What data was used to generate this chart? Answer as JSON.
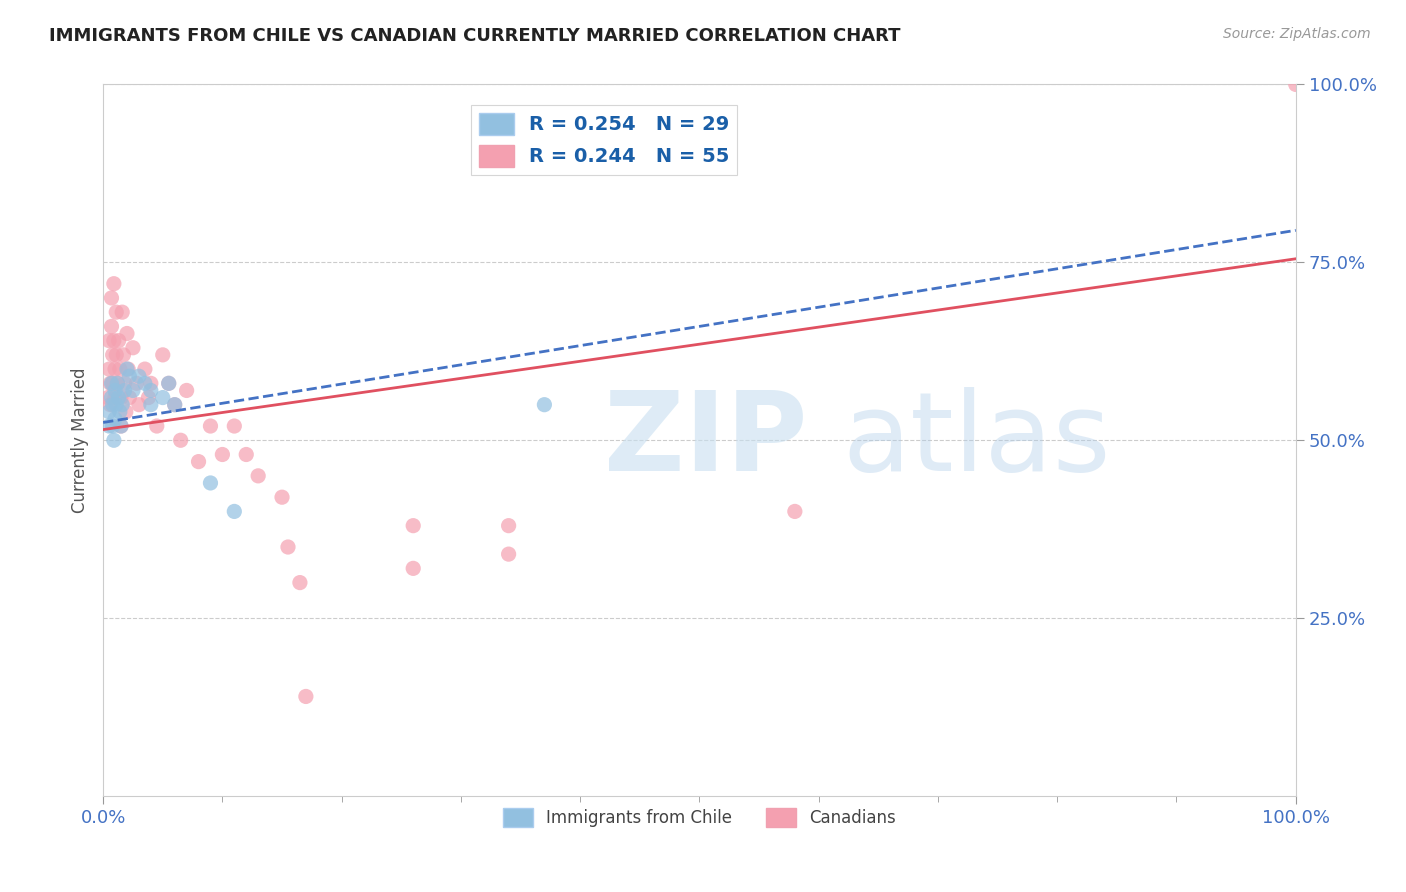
{
  "title": "IMMIGRANTS FROM CHILE VS CANADIAN CURRENTLY MARRIED CORRELATION CHART",
  "source_text": "Source: ZipAtlas.com",
  "ylabel": "Currently Married",
  "xmin": 0.0,
  "xmax": 1.0,
  "ymin": 0.0,
  "ymax": 1.0,
  "color_blue": "#92c0e0",
  "color_pink": "#f4a0b0",
  "trendline_blue_color": "#4472c4",
  "trendline_pink_color": "#e05060",
  "legend_label1": "Immigrants from Chile",
  "legend_label2": "Canadians",
  "legend_r1": "R = 0.254",
  "legend_n1": "N = 29",
  "legend_r2": "R = 0.244",
  "legend_n2": "N = 55",
  "blue_scatter": [
    [
      0.005,
      0.52
    ],
    [
      0.005,
      0.54
    ],
    [
      0.007,
      0.56
    ],
    [
      0.007,
      0.58
    ],
    [
      0.008,
      0.55
    ],
    [
      0.008,
      0.52
    ],
    [
      0.009,
      0.5
    ],
    [
      0.01,
      0.57
    ],
    [
      0.01,
      0.53
    ],
    [
      0.011,
      0.55
    ],
    [
      0.012,
      0.58
    ],
    [
      0.013,
      0.56
    ],
    [
      0.014,
      0.54
    ],
    [
      0.015,
      0.52
    ],
    [
      0.016,
      0.55
    ],
    [
      0.018,
      0.57
    ],
    [
      0.02,
      0.6
    ],
    [
      0.022,
      0.59
    ],
    [
      0.025,
      0.57
    ],
    [
      0.03,
      0.59
    ],
    [
      0.035,
      0.58
    ],
    [
      0.04,
      0.57
    ],
    [
      0.04,
      0.55
    ],
    [
      0.05,
      0.56
    ],
    [
      0.055,
      0.58
    ],
    [
      0.06,
      0.55
    ],
    [
      0.09,
      0.44
    ],
    [
      0.11,
      0.4
    ],
    [
      0.37,
      0.55
    ]
  ],
  "pink_scatter": [
    [
      0.004,
      0.56
    ],
    [
      0.005,
      0.6
    ],
    [
      0.005,
      0.64
    ],
    [
      0.006,
      0.58
    ],
    [
      0.006,
      0.55
    ],
    [
      0.007,
      0.7
    ],
    [
      0.007,
      0.66
    ],
    [
      0.008,
      0.62
    ],
    [
      0.008,
      0.58
    ],
    [
      0.009,
      0.72
    ],
    [
      0.009,
      0.64
    ],
    [
      0.01,
      0.6
    ],
    [
      0.01,
      0.56
    ],
    [
      0.011,
      0.68
    ],
    [
      0.011,
      0.62
    ],
    [
      0.012,
      0.58
    ],
    [
      0.013,
      0.64
    ],
    [
      0.014,
      0.6
    ],
    [
      0.015,
      0.56
    ],
    [
      0.015,
      0.52
    ],
    [
      0.016,
      0.68
    ],
    [
      0.017,
      0.62
    ],
    [
      0.018,
      0.58
    ],
    [
      0.019,
      0.54
    ],
    [
      0.02,
      0.65
    ],
    [
      0.021,
      0.6
    ],
    [
      0.022,
      0.56
    ],
    [
      0.025,
      0.63
    ],
    [
      0.028,
      0.58
    ],
    [
      0.03,
      0.55
    ],
    [
      0.035,
      0.6
    ],
    [
      0.038,
      0.56
    ],
    [
      0.04,
      0.58
    ],
    [
      0.045,
      0.52
    ],
    [
      0.05,
      0.62
    ],
    [
      0.055,
      0.58
    ],
    [
      0.06,
      0.55
    ],
    [
      0.065,
      0.5
    ],
    [
      0.07,
      0.57
    ],
    [
      0.08,
      0.47
    ],
    [
      0.09,
      0.52
    ],
    [
      0.1,
      0.48
    ],
    [
      0.11,
      0.52
    ],
    [
      0.12,
      0.48
    ],
    [
      0.13,
      0.45
    ],
    [
      0.15,
      0.42
    ],
    [
      0.155,
      0.35
    ],
    [
      0.165,
      0.3
    ],
    [
      0.17,
      0.14
    ],
    [
      0.26,
      0.38
    ],
    [
      0.26,
      0.32
    ],
    [
      0.34,
      0.38
    ],
    [
      0.34,
      0.34
    ],
    [
      0.58,
      0.4
    ],
    [
      1.0,
      1.0
    ]
  ]
}
